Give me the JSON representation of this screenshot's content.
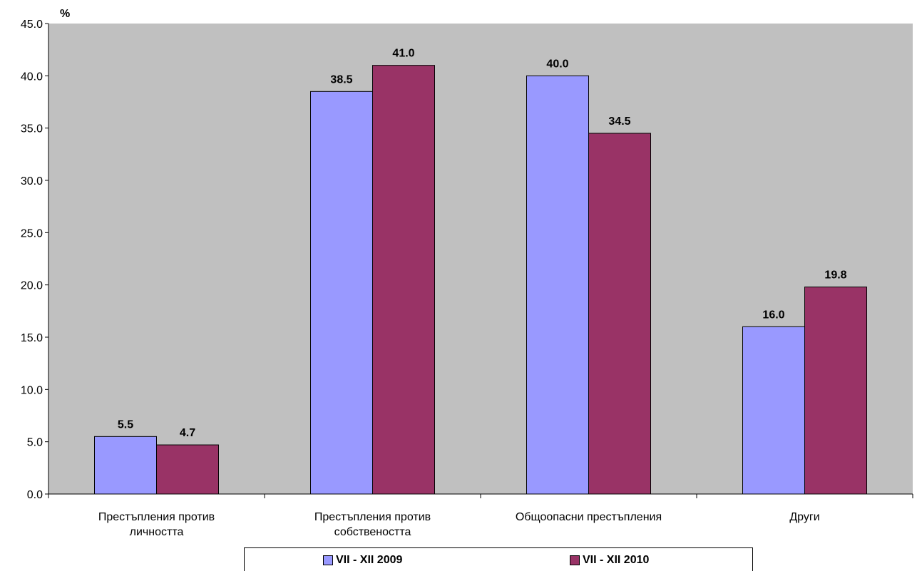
{
  "chart_data": {
    "type": "bar",
    "y_unit": "%",
    "categories": [
      [
        "Престъпления против",
        "личността"
      ],
      [
        "Престъпления против",
        "собствеността"
      ],
      [
        "Общоопасни престъпления"
      ],
      [
        "Други"
      ]
    ],
    "series": [
      {
        "name": "VII - XII 2009",
        "color": "#9999ff",
        "values": [
          5.5,
          38.5,
          40.0,
          16.0
        ]
      },
      {
        "name": "VII - XII 2010",
        "color": "#993366",
        "values": [
          4.7,
          41.0,
          34.5,
          19.8
        ]
      }
    ],
    "ylim": [
      0,
      45
    ],
    "yticks": [
      "0.0",
      "5.0",
      "10.0",
      "15.0",
      "20.0",
      "25.0",
      "30.0",
      "35.0",
      "40.0",
      "45.0"
    ],
    "y_step": 5,
    "grid": false,
    "plot_background": "#c0c0c0",
    "legend_position": "bottom"
  }
}
